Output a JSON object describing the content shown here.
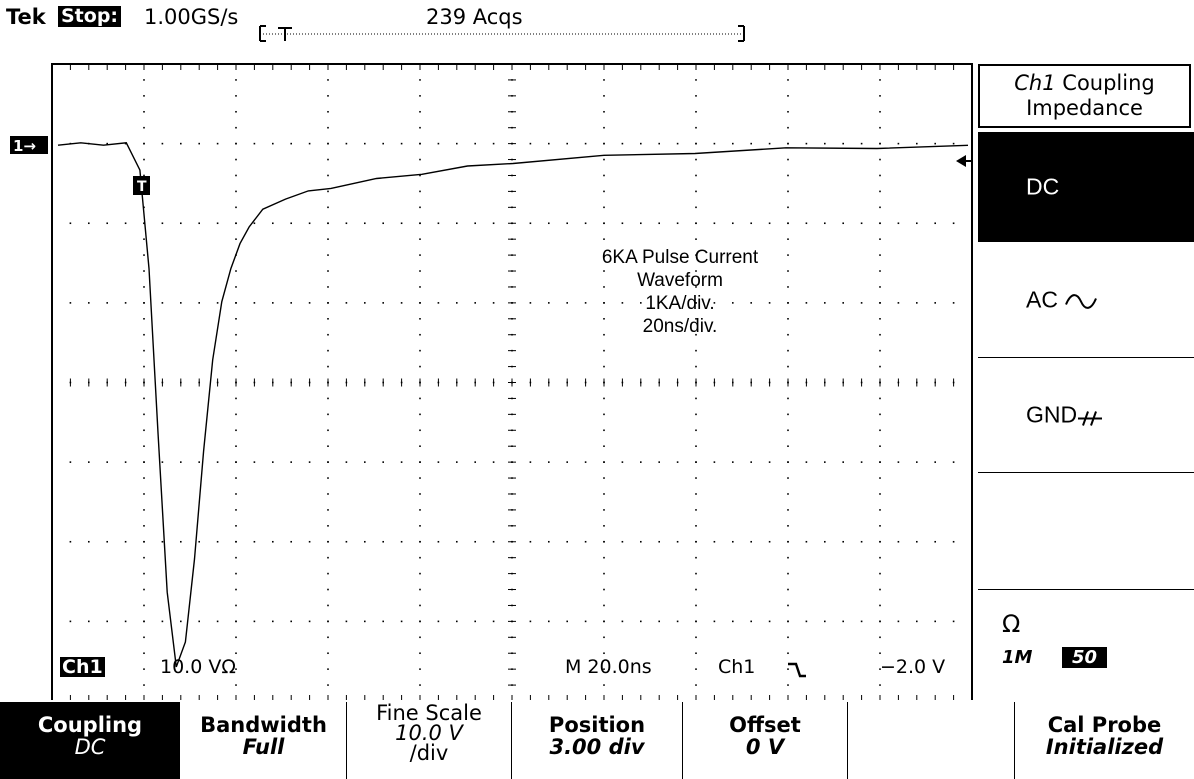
{
  "status": {
    "brand": "Tek",
    "state": "Stop:",
    "sample_rate": "1.00GS/s",
    "acquisitions": "239 Acqs"
  },
  "screen": {
    "channel_marker": "1→",
    "trigger_marker": "T",
    "ch_label": "Ch1",
    "ch_scale": "10.0 VΩ",
    "timebase": "M 20.0ns",
    "trigger_source": "Ch1",
    "trigger_slope_icon": "falling-edge-icon",
    "trigger_level": "−2.0 V",
    "annotation": [
      "6KA Pulse Current",
      "Waveform",
      "1KA/div.",
      "20ns/div."
    ],
    "colors": {
      "trace": "#000000",
      "background": "#ffffff",
      "menu_selected": "#000000"
    }
  },
  "side_menu": {
    "title_ch": "Ch1",
    "title_rest": "Coupling",
    "title_line2": "Impedance",
    "items": [
      {
        "label": "DC",
        "selected": true
      },
      {
        "label": "AC",
        "icon": "ac-wave-icon"
      },
      {
        "label": "GND",
        "icon": "ground-icon"
      },
      {
        "label": ""
      }
    ],
    "impedance": {
      "symbol": "Ω",
      "option_1": "1M",
      "option_2": "50",
      "selected": "50"
    }
  },
  "bottom_menu": [
    {
      "line1": "Coupling",
      "line2": "DC",
      "selected": true
    },
    {
      "line1": "Bandwidth",
      "line2": "Full"
    },
    {
      "line1": "Fine Scale",
      "line2": "10.0 V",
      "line3": "/div"
    },
    {
      "line1": "Position",
      "line2": "3.00 div"
    },
    {
      "line1": "Offset",
      "line2": "0 V"
    },
    {
      "line1": "",
      "line2": ""
    },
    {
      "line1": "Cal Probe",
      "line2": "Initialized"
    }
  ],
  "chart_data": {
    "type": "line",
    "title": "",
    "xlabel": "",
    "ylabel": "",
    "x_unit": "ns",
    "y_unit": "KA",
    "xlim": [
      0,
      200
    ],
    "ylim": [
      -6.5,
      0.5
    ],
    "series": [
      {
        "x": [
          0,
          5,
          10,
          15,
          18,
          20,
          22,
          24,
          26,
          28,
          30,
          32,
          34,
          36,
          38,
          40,
          42,
          45,
          50,
          55,
          60,
          70,
          80,
          90,
          100,
          120,
          140,
          160,
          180,
          200
        ],
        "y": [
          0,
          0,
          0,
          0,
          -0.3,
          -1.5,
          -3.5,
          -5.4,
          -6.3,
          -6.0,
          -5.0,
          -3.7,
          -2.6,
          -1.9,
          -1.5,
          -1.2,
          -1.0,
          -0.8,
          -0.65,
          -0.58,
          -0.52,
          -0.43,
          -0.35,
          -0.28,
          -0.22,
          -0.15,
          -0.1,
          -0.06,
          -0.04,
          -0.03
        ]
      }
    ]
  }
}
